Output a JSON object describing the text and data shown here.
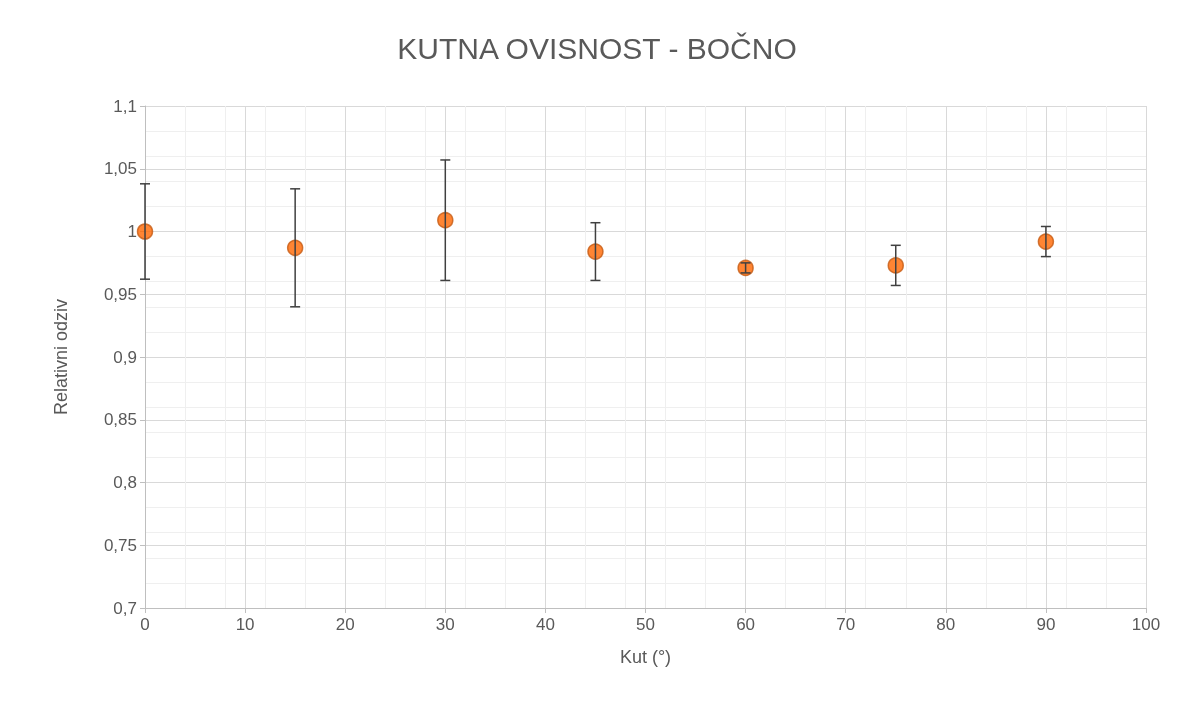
{
  "chart_data": {
    "type": "scatter",
    "title": "KUTNA OVISNOST - BOČNO",
    "xlabel": "Kut (°)",
    "ylabel": "Relativni odziv",
    "x": [
      0,
      15,
      30,
      45,
      60,
      75,
      90
    ],
    "series": [
      {
        "color": "#ff6600",
        "values": [
          1.0,
          0.987,
          1.009,
          0.984,
          0.971,
          0.973,
          0.992
        ],
        "errors": [
          0.038,
          0.047,
          0.048,
          0.023,
          0.004,
          0.016,
          0.012
        ]
      }
    ],
    "xlim": [
      0,
      100
    ],
    "xticks": [
      0,
      10,
      20,
      30,
      40,
      50,
      60,
      70,
      80,
      90,
      100
    ],
    "ylim": [
      0.7,
      1.1
    ],
    "yticks": [
      {
        "value": 0.7,
        "label": "0,7"
      },
      {
        "value": 0.75,
        "label": "0,75"
      },
      {
        "value": 0.8,
        "label": "0,8"
      },
      {
        "value": 0.85,
        "label": "0,85"
      },
      {
        "value": 0.9,
        "label": "0,9"
      },
      {
        "value": 0.95,
        "label": "0,95"
      },
      {
        "value": 1,
        "label": "1"
      },
      {
        "value": 1.05,
        "label": "1,05"
      },
      {
        "value": 1.1,
        "label": "1,1"
      }
    ],
    "grid": true,
    "marker": "circle"
  }
}
